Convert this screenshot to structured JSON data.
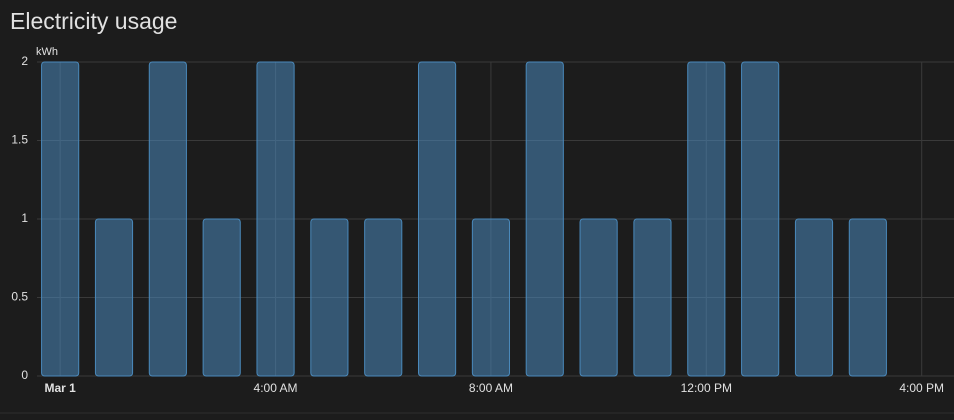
{
  "title": "Electricity usage",
  "chart_data": {
    "type": "bar",
    "y_label": "kWh",
    "x": [
      0,
      1,
      2,
      3,
      4,
      5,
      6,
      7,
      8,
      9,
      10,
      11,
      12,
      13,
      14,
      15
    ],
    "series": [
      {
        "name": "Electricity usage",
        "color": "#4a89bb",
        "values": [
          2,
          1,
          2,
          1,
          2,
          1,
          1,
          2,
          1,
          2,
          1,
          1,
          2,
          2,
          1,
          1
        ]
      }
    ],
    "xlim": [
      -0.43,
      16.6
    ],
    "xticks": [
      {
        "value": 0,
        "label": "Mar 1"
      },
      {
        "value": 4,
        "label": "4:00 AM"
      },
      {
        "value": 8,
        "label": "8:00 AM"
      },
      {
        "value": 12,
        "label": "12:00 PM"
      },
      {
        "value": 16,
        "label": "4:00 PM"
      }
    ],
    "ylim": [
      0,
      2
    ],
    "yticks": [
      0,
      0.5,
      1,
      1.5,
      2
    ],
    "grid": true
  }
}
